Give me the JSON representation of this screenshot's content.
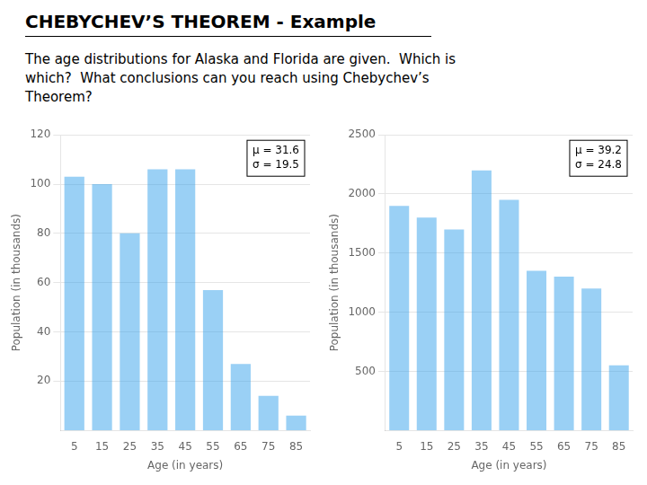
{
  "title": "CHEBYCHEV’S THEOREM - Example",
  "subtitle": "The age distributions for Alaska and Florida are given.  Which is\nwhich?  What conclusions can you reach using Chebychev’s\nTheorem?",
  "chart_data": [
    {
      "type": "bar",
      "categories": [
        "5",
        "15",
        "25",
        "35",
        "45",
        "55",
        "65",
        "75",
        "85"
      ],
      "values": [
        103,
        100,
        80,
        106,
        106,
        57,
        27,
        14,
        6
      ],
      "xlabel": "Age (in years)",
      "ylabel": "Population (in thousands)",
      "ylim": [
        0,
        120
      ],
      "yticks": [
        20,
        40,
        60,
        80,
        100,
        120
      ],
      "grid": true,
      "annotations": [
        "μ = 31.6",
        "σ = 19.5"
      ]
    },
    {
      "type": "bar",
      "categories": [
        "5",
        "15",
        "25",
        "35",
        "45",
        "55",
        "65",
        "75",
        "85"
      ],
      "values": [
        1900,
        1800,
        1700,
        2200,
        1950,
        1350,
        1300,
        1200,
        550
      ],
      "xlabel": "Age (in years)",
      "ylabel": "Population (in thousands)",
      "ylim": [
        0,
        2500
      ],
      "yticks": [
        500,
        1000,
        1500,
        2000,
        2500
      ],
      "grid": true,
      "annotations": [
        "μ = 39.2",
        "σ = 24.8"
      ]
    }
  ]
}
